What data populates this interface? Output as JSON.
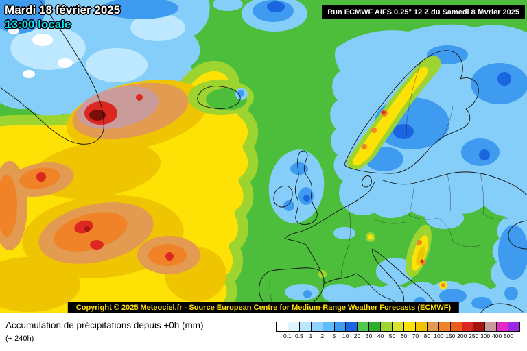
{
  "header": {
    "date_line": "Mardi 18 février 2025",
    "time_line": "13:00 locale",
    "run_info": "Run ECMWF AIFS 0.25° 12 Z du Samedi 8 février 2025"
  },
  "footer": {
    "copyright": "Copyright © 2025 Meteociel.fr - Source European Centre for Medium-Range Weather Forecasts (ECMWF)",
    "caption": "Accumulation de précipitations depuis +0h (mm)",
    "caption_sub": "(+ 240h)"
  },
  "legend": {
    "values": [
      "0.1",
      "0.5",
      "1",
      "2",
      "5",
      "10",
      "20",
      "30",
      "40",
      "50",
      "60",
      "70",
      "80",
      "100",
      "150",
      "200",
      "250",
      "300",
      "400",
      "500"
    ],
    "colors": [
      "#FFFFFF",
      "#DFF5FF",
      "#B8E7FF",
      "#8ED3FF",
      "#64BCFF",
      "#3C9BF5",
      "#1A66E0",
      "#50C850",
      "#2DAF2D",
      "#9ED42F",
      "#D8E42A",
      "#FFE205",
      "#EFC400",
      "#E39B52",
      "#F08228",
      "#E85C1E",
      "#DC2820",
      "#A21510",
      "#C99B9B",
      "#E628C8",
      "#9C28E6"
    ]
  },
  "map": {
    "description": "Precipitation accumulation map over Europe and the North Atlantic",
    "base_color": "#4CBE3C"
  }
}
